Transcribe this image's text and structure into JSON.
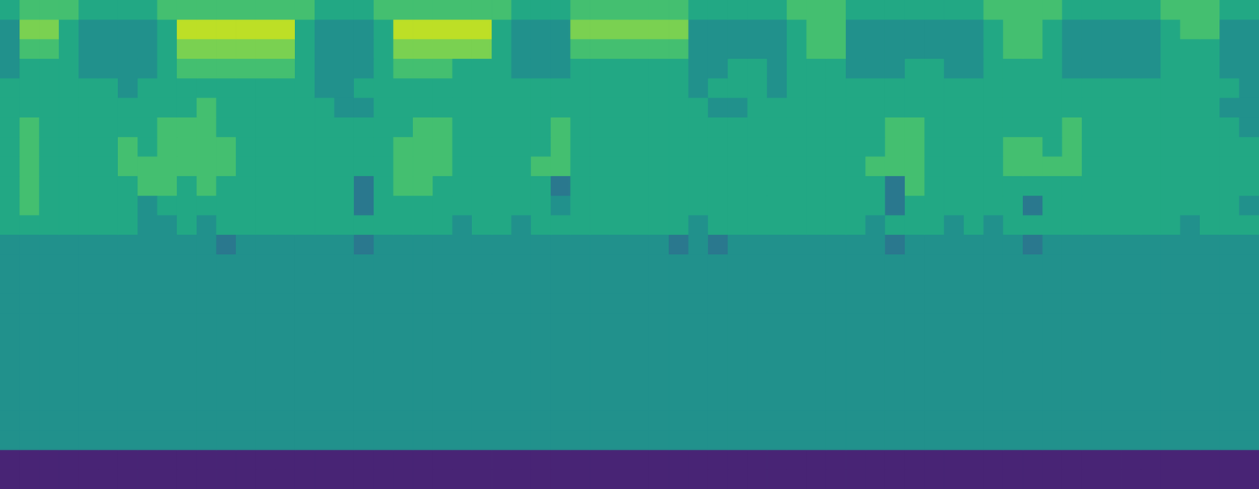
{
  "chart_data": {
    "type": "heatmap",
    "color": "viridis",
    "tick_labels": false,
    "color_range": [
      0,
      10
    ],
    "cells": [
      [
        6,
        7,
        7,
        7,
        6,
        6,
        6,
        6,
        7,
        7,
        7,
        7,
        7,
        7,
        7,
        7,
        6,
        6,
        6,
        7,
        7,
        7,
        7,
        7,
        7,
        7,
        6,
        6,
        6,
        7,
        7,
        7,
        7,
        7,
        7,
        6,
        6,
        6,
        6,
        6,
        7,
        7,
        7,
        6,
        6,
        6,
        6,
        6,
        6,
        6,
        7,
        7,
        7,
        7,
        6,
        6,
        6,
        6,
        6,
        7,
        7,
        7,
        6,
        6
      ],
      [
        5,
        8,
        8,
        6,
        5,
        5,
        5,
        5,
        6,
        9,
        9,
        9,
        9,
        9,
        9,
        6,
        5,
        5,
        5,
        6,
        9,
        9,
        9,
        9,
        9,
        6,
        5,
        5,
        5,
        8,
        8,
        8,
        8,
        8,
        8,
        5,
        5,
        5,
        5,
        5,
        6,
        7,
        7,
        5,
        5,
        5,
        5,
        5,
        5,
        5,
        6,
        7,
        7,
        6,
        5,
        5,
        5,
        5,
        5,
        6,
        7,
        7,
        5,
        5
      ],
      [
        5,
        7,
        7,
        6,
        5,
        5,
        5,
        5,
        6,
        8,
        8,
        8,
        8,
        8,
        8,
        6,
        5,
        5,
        5,
        6,
        8,
        8,
        8,
        8,
        8,
        6,
        5,
        5,
        5,
        7,
        7,
        7,
        7,
        7,
        7,
        5,
        5,
        5,
        5,
        5,
        6,
        7,
        7,
        5,
        5,
        5,
        5,
        5,
        5,
        5,
        6,
        7,
        7,
        6,
        5,
        5,
        5,
        5,
        5,
        6,
        6,
        6,
        5,
        5
      ],
      [
        5,
        6,
        6,
        6,
        5,
        5,
        5,
        5,
        6,
        7,
        7,
        7,
        7,
        7,
        7,
        6,
        5,
        5,
        5,
        6,
        7,
        7,
        7,
        6,
        6,
        6,
        5,
        5,
        5,
        6,
        6,
        6,
        6,
        6,
        6,
        5,
        5,
        6,
        6,
        5,
        6,
        6,
        6,
        5,
        5,
        5,
        6,
        6,
        5,
        5,
        6,
        6,
        6,
        6,
        5,
        5,
        5,
        5,
        5,
        6,
        6,
        6,
        5,
        5
      ],
      [
        6,
        6,
        6,
        6,
        6,
        6,
        5,
        6,
        6,
        6,
        6,
        6,
        6,
        6,
        6,
        6,
        5,
        5,
        6,
        6,
        6,
        6,
        6,
        6,
        6,
        6,
        6,
        6,
        6,
        6,
        6,
        6,
        6,
        6,
        6,
        5,
        6,
        6,
        6,
        5,
        6,
        6,
        6,
        6,
        6,
        6,
        6,
        6,
        6,
        6,
        6,
        6,
        6,
        6,
        6,
        6,
        6,
        6,
        6,
        6,
        6,
        6,
        6,
        5
      ],
      [
        6,
        6,
        6,
        6,
        6,
        6,
        6,
        6,
        6,
        6,
        7,
        6,
        6,
        6,
        6,
        6,
        6,
        5,
        5,
        6,
        6,
        6,
        6,
        6,
        6,
        6,
        6,
        6,
        6,
        6,
        6,
        6,
        6,
        6,
        6,
        6,
        5,
        5,
        6,
        6,
        6,
        6,
        6,
        6,
        6,
        6,
        6,
        6,
        6,
        6,
        6,
        6,
        6,
        6,
        6,
        6,
        6,
        6,
        6,
        6,
        6,
        6,
        5,
        5
      ],
      [
        6,
        7,
        6,
        6,
        6,
        6,
        6,
        6,
        7,
        7,
        7,
        6,
        6,
        6,
        6,
        6,
        6,
        6,
        6,
        6,
        6,
        7,
        7,
        6,
        6,
        6,
        6,
        6,
        7,
        6,
        6,
        6,
        6,
        6,
        6,
        6,
        6,
        6,
        6,
        6,
        6,
        6,
        6,
        6,
        6,
        7,
        7,
        6,
        6,
        6,
        6,
        6,
        6,
        6,
        7,
        6,
        6,
        6,
        6,
        6,
        6,
        6,
        6,
        5
      ],
      [
        6,
        7,
        6,
        6,
        6,
        6,
        7,
        6,
        7,
        7,
        7,
        7,
        6,
        6,
        6,
        6,
        6,
        6,
        6,
        6,
        7,
        7,
        7,
        6,
        6,
        6,
        6,
        6,
        7,
        6,
        6,
        6,
        6,
        6,
        6,
        6,
        6,
        6,
        6,
        6,
        6,
        6,
        6,
        6,
        6,
        7,
        7,
        6,
        6,
        6,
        6,
        7,
        7,
        6,
        7,
        6,
        6,
        6,
        6,
        6,
        6,
        6,
        6,
        6
      ],
      [
        6,
        7,
        6,
        6,
        6,
        6,
        7,
        7,
        7,
        7,
        7,
        7,
        6,
        6,
        6,
        6,
        6,
        6,
        6,
        6,
        7,
        7,
        7,
        6,
        6,
        6,
        6,
        7,
        7,
        6,
        6,
        6,
        6,
        6,
        6,
        6,
        6,
        6,
        6,
        6,
        6,
        6,
        6,
        6,
        7,
        7,
        7,
        6,
        6,
        6,
        6,
        7,
        7,
        7,
        7,
        6,
        6,
        6,
        6,
        6,
        6,
        6,
        6,
        6
      ],
      [
        6,
        7,
        6,
        6,
        6,
        6,
        6,
        7,
        7,
        6,
        7,
        6,
        6,
        6,
        6,
        6,
        6,
        6,
        4,
        6,
        7,
        7,
        6,
        6,
        6,
        6,
        6,
        6,
        4,
        6,
        6,
        6,
        6,
        6,
        6,
        6,
        6,
        6,
        6,
        6,
        6,
        6,
        6,
        6,
        6,
        4,
        7,
        6,
        6,
        6,
        6,
        6,
        6,
        6,
        6,
        6,
        6,
        6,
        6,
        6,
        6,
        6,
        6,
        6
      ],
      [
        6,
        7,
        6,
        6,
        6,
        6,
        6,
        5,
        6,
        6,
        6,
        6,
        6,
        6,
        6,
        6,
        6,
        6,
        4,
        6,
        6,
        6,
        6,
        6,
        6,
        6,
        6,
        6,
        5,
        6,
        6,
        6,
        6,
        6,
        6,
        6,
        6,
        6,
        6,
        6,
        6,
        6,
        6,
        6,
        6,
        4,
        6,
        6,
        6,
        6,
        6,
        6,
        4,
        6,
        6,
        6,
        6,
        6,
        6,
        6,
        6,
        6,
        6,
        5
      ],
      [
        6,
        6,
        6,
        6,
        6,
        6,
        6,
        5,
        5,
        6,
        5,
        6,
        6,
        6,
        6,
        6,
        6,
        6,
        6,
        6,
        6,
        6,
        6,
        5,
        6,
        6,
        5,
        6,
        6,
        6,
        6,
        6,
        6,
        6,
        6,
        5,
        6,
        6,
        6,
        6,
        6,
        6,
        6,
        6,
        5,
        6,
        6,
        6,
        5,
        6,
        5,
        6,
        6,
        6,
        6,
        6,
        6,
        6,
        6,
        6,
        5,
        6,
        6,
        6
      ],
      [
        5,
        5,
        5,
        5,
        5,
        5,
        5,
        5,
        5,
        5,
        5,
        4,
        5,
        5,
        5,
        5,
        5,
        5,
        4,
        5,
        5,
        5,
        5,
        5,
        5,
        5,
        5,
        5,
        5,
        5,
        5,
        5,
        5,
        5,
        4,
        5,
        4,
        5,
        5,
        5,
        5,
        5,
        5,
        5,
        5,
        4,
        5,
        5,
        5,
        5,
        5,
        5,
        4,
        5,
        5,
        5,
        5,
        5,
        5,
        5,
        5,
        5,
        5,
        5
      ],
      [
        5,
        5,
        5,
        5,
        5,
        5,
        5,
        5,
        5,
        5,
        5,
        5,
        5,
        5,
        5,
        5,
        5,
        5,
        5,
        5,
        5,
        5,
        5,
        5,
        5,
        5,
        5,
        5,
        5,
        5,
        5,
        5,
        5,
        5,
        5,
        5,
        5,
        5,
        5,
        5,
        5,
        5,
        5,
        5,
        5,
        5,
        5,
        5,
        5,
        5,
        5,
        5,
        5,
        5,
        5,
        5,
        5,
        5,
        5,
        5,
        5,
        5,
        5,
        5
      ],
      [
        5,
        5,
        5,
        5,
        5,
        5,
        5,
        5,
        5,
        5,
        5,
        5,
        5,
        5,
        5,
        5,
        5,
        5,
        5,
        5,
        5,
        5,
        5,
        5,
        5,
        5,
        5,
        5,
        5,
        5,
        5,
        5,
        5,
        5,
        5,
        5,
        5,
        5,
        5,
        5,
        5,
        5,
        5,
        5,
        5,
        5,
        5,
        5,
        5,
        5,
        5,
        5,
        5,
        5,
        5,
        5,
        5,
        5,
        5,
        5,
        5,
        5,
        5,
        5
      ],
      [
        5,
        5,
        5,
        5,
        5,
        5,
        5,
        5,
        5,
        5,
        5,
        5,
        5,
        5,
        5,
        5,
        5,
        5,
        5,
        5,
        5,
        5,
        5,
        5,
        5,
        5,
        5,
        5,
        5,
        5,
        5,
        5,
        5,
        5,
        5,
        5,
        5,
        5,
        5,
        5,
        5,
        5,
        5,
        5,
        5,
        5,
        5,
        5,
        5,
        5,
        5,
        5,
        5,
        5,
        5,
        5,
        5,
        5,
        5,
        5,
        5,
        5,
        5,
        5
      ],
      [
        5,
        5,
        5,
        5,
        5,
        5,
        5,
        5,
        5,
        5,
        5,
        5,
        5,
        5,
        5,
        5,
        5,
        5,
        5,
        5,
        5,
        5,
        5,
        5,
        5,
        5,
        5,
        5,
        5,
        5,
        5,
        5,
        5,
        5,
        5,
        5,
        5,
        5,
        5,
        5,
        5,
        5,
        5,
        5,
        5,
        5,
        5,
        5,
        5,
        5,
        5,
        5,
        5,
        5,
        5,
        5,
        5,
        5,
        5,
        5,
        5,
        5,
        5,
        5
      ],
      [
        5,
        5,
        5,
        5,
        5,
        5,
        5,
        5,
        5,
        5,
        5,
        5,
        5,
        5,
        5,
        5,
        5,
        5,
        5,
        5,
        5,
        5,
        5,
        5,
        5,
        5,
        5,
        5,
        5,
        5,
        5,
        5,
        5,
        5,
        5,
        5,
        5,
        5,
        5,
        5,
        5,
        5,
        5,
        5,
        5,
        5,
        5,
        5,
        5,
        5,
        5,
        5,
        5,
        5,
        5,
        5,
        5,
        5,
        5,
        5,
        5,
        5,
        5,
        5
      ],
      [
        5,
        5,
        5,
        5,
        5,
        5,
        5,
        5,
        5,
        5,
        5,
        5,
        5,
        5,
        5,
        5,
        5,
        5,
        5,
        5,
        5,
        5,
        5,
        5,
        5,
        5,
        5,
        5,
        5,
        5,
        5,
        5,
        5,
        5,
        5,
        5,
        5,
        5,
        5,
        5,
        5,
        5,
        5,
        5,
        5,
        5,
        5,
        5,
        5,
        5,
        5,
        5,
        5,
        5,
        5,
        5,
        5,
        5,
        5,
        5,
        5,
        5,
        5,
        5
      ],
      [
        5,
        5,
        5,
        5,
        5,
        5,
        5,
        5,
        5,
        5,
        5,
        5,
        5,
        5,
        5,
        5,
        5,
        5,
        5,
        5,
        5,
        5,
        5,
        5,
        5,
        5,
        5,
        5,
        5,
        5,
        5,
        5,
        5,
        5,
        5,
        5,
        5,
        5,
        5,
        5,
        5,
        5,
        5,
        5,
        5,
        5,
        5,
        5,
        5,
        5,
        5,
        5,
        5,
        5,
        5,
        5,
        5,
        5,
        5,
        5,
        5,
        5,
        5,
        5
      ],
      [
        5,
        5,
        5,
        5,
        5,
        5,
        5,
        5,
        5,
        5,
        5,
        5,
        5,
        5,
        5,
        5,
        5,
        5,
        5,
        5,
        5,
        5,
        5,
        5,
        5,
        5,
        5,
        5,
        5,
        5,
        5,
        5,
        5,
        5,
        5,
        5,
        5,
        5,
        5,
        5,
        5,
        5,
        5,
        5,
        5,
        5,
        5,
        5,
        5,
        5,
        5,
        5,
        5,
        5,
        5,
        5,
        5,
        5,
        5,
        5,
        5,
        5,
        5,
        5
      ],
      [
        5,
        5,
        5,
        5,
        5,
        5,
        5,
        5,
        5,
        5,
        5,
        5,
        5,
        5,
        5,
        5,
        5,
        5,
        5,
        5,
        5,
        5,
        5,
        5,
        5,
        5,
        5,
        5,
        5,
        5,
        5,
        5,
        5,
        5,
        5,
        5,
        5,
        5,
        5,
        5,
        5,
        5,
        5,
        5,
        5,
        5,
        5,
        5,
        5,
        5,
        5,
        5,
        5,
        5,
        5,
        5,
        5,
        5,
        5,
        5,
        5,
        5,
        5,
        5
      ],
      [
        5,
        5,
        5,
        5,
        5,
        5,
        5,
        5,
        5,
        5,
        5,
        5,
        5,
        5,
        5,
        5,
        5,
        5,
        5,
        5,
        5,
        5,
        5,
        5,
        5,
        5,
        5,
        5,
        5,
        5,
        5,
        5,
        5,
        5,
        5,
        5,
        5,
        5,
        5,
        5,
        5,
        5,
        5,
        5,
        5,
        5,
        5,
        5,
        5,
        5,
        5,
        5,
        5,
        5,
        5,
        5,
        5,
        5,
        5,
        5,
        5,
        5,
        5,
        5
      ],
      [
        1,
        1,
        1,
        1,
        1,
        1,
        1,
        1,
        1,
        1,
        1,
        1,
        1,
        1,
        1,
        1,
        1,
        1,
        1,
        1,
        1,
        1,
        1,
        1,
        1,
        1,
        1,
        1,
        1,
        1,
        1,
        1,
        1,
        1,
        1,
        1,
        1,
        1,
        1,
        1,
        1,
        1,
        1,
        1,
        1,
        1,
        1,
        1,
        1,
        1,
        1,
        1,
        1,
        1,
        1,
        1,
        1,
        1,
        1,
        1,
        1,
        1,
        1,
        1
      ],
      [
        1,
        1,
        1,
        1,
        1,
        1,
        1,
        1,
        1,
        1,
        1,
        1,
        1,
        1,
        1,
        1,
        1,
        1,
        1,
        1,
        1,
        1,
        1,
        1,
        1,
        1,
        1,
        1,
        1,
        1,
        1,
        1,
        1,
        1,
        1,
        1,
        1,
        1,
        1,
        1,
        1,
        1,
        1,
        1,
        1,
        1,
        1,
        1,
        1,
        1,
        1,
        1,
        1,
        1,
        1,
        1,
        1,
        1,
        1,
        1,
        1,
        1,
        1,
        1
      ]
    ]
  }
}
